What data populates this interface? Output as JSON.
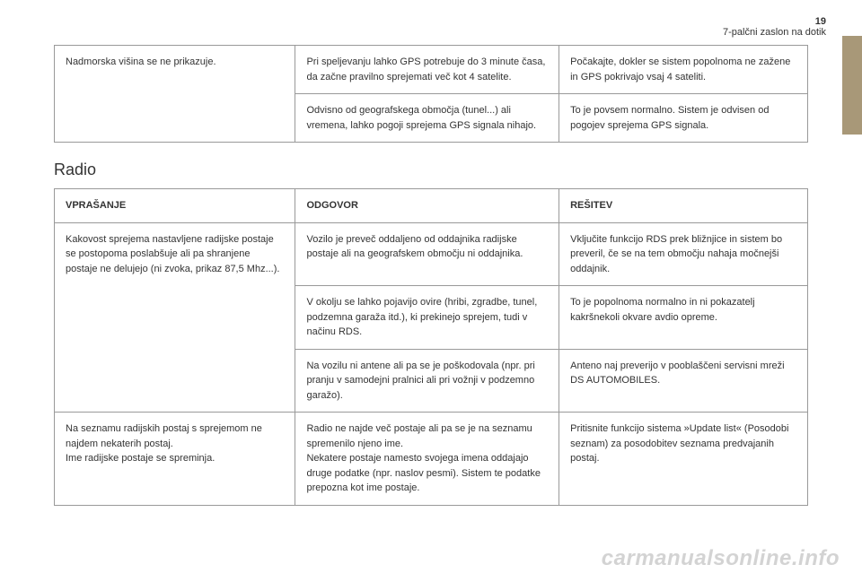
{
  "page": {
    "number": "19",
    "subtitle": "7-palčni zaslon na dotik"
  },
  "table1": {
    "rows": [
      {
        "c1": "Nadmorska višina se ne prikazuje.",
        "c2": "Pri speljevanju lahko GPS potrebuje do 3 minute časa, da začne pravilno sprejemati več kot 4 satelite.",
        "c3": "Počakajte, dokler se sistem popolnoma ne zažene in GPS pokrivajo vsaj 4 sateliti."
      },
      {
        "c2": "Odvisno od geografskega območja (tunel...) ali vremena, lahko pogoji sprejema GPS signala nihajo.",
        "c3": "To je povsem normalno. Sistem je odvisen od pogojev sprejema GPS signala."
      }
    ]
  },
  "section2": {
    "title": "Radio"
  },
  "table2": {
    "headers": {
      "h1": "VPRAŠANJE",
      "h2": "ODGOVOR",
      "h3": "REŠITEV"
    },
    "rows": [
      {
        "c1": "Kakovost sprejema nastavljene radijske postaje se postopoma poslabšuje ali pa shranjene postaje ne delujejo (ni zvoka, prikaz 87,5 Mhz...).",
        "c2": "Vozilo je preveč oddaljeno od oddajnika radijske postaje ali na geografskem območju ni oddajnika.",
        "c3": "Vključite funkcijo RDS prek bližnjice in sistem bo preveril, če se na tem območju nahaja močnejši oddajnik."
      },
      {
        "c2": "V okolju se lahko pojavijo ovire (hribi, zgradbe, tunel, podzemna garaža itd.), ki prekinejo sprejem, tudi v načinu RDS.",
        "c3": "To je popolnoma normalno in ni pokazatelj kakršnekoli okvare avdio opreme."
      },
      {
        "c2": "Na vozilu ni antene ali pa se je poškodovala (npr. pri pranju v samodejni pralnici ali pri vožnji v podzemno garažo).",
        "c3": "Anteno naj preverijo v pooblaščeni servisni mreži DS AUTOMOBILES."
      },
      {
        "c1": "Na seznamu radijskih postaj s sprejemom ne najdem nekaterih postaj.\nIme radijske postaje se spreminja.",
        "c2": "Radio ne najde več postaje ali pa se je na seznamu spremenilo njeno ime.\nNekatere postaje namesto svojega imena oddajajo druge podatke (npr. naslov pesmi). Sistem te podatke prepozna kot ime postaje.",
        "c3": "Pritisnite funkcijo sistema »Update list« (Posodobi seznam) za posodobitev seznama predvajanih postaj."
      }
    ]
  },
  "watermark": "carmanualsonline.info"
}
